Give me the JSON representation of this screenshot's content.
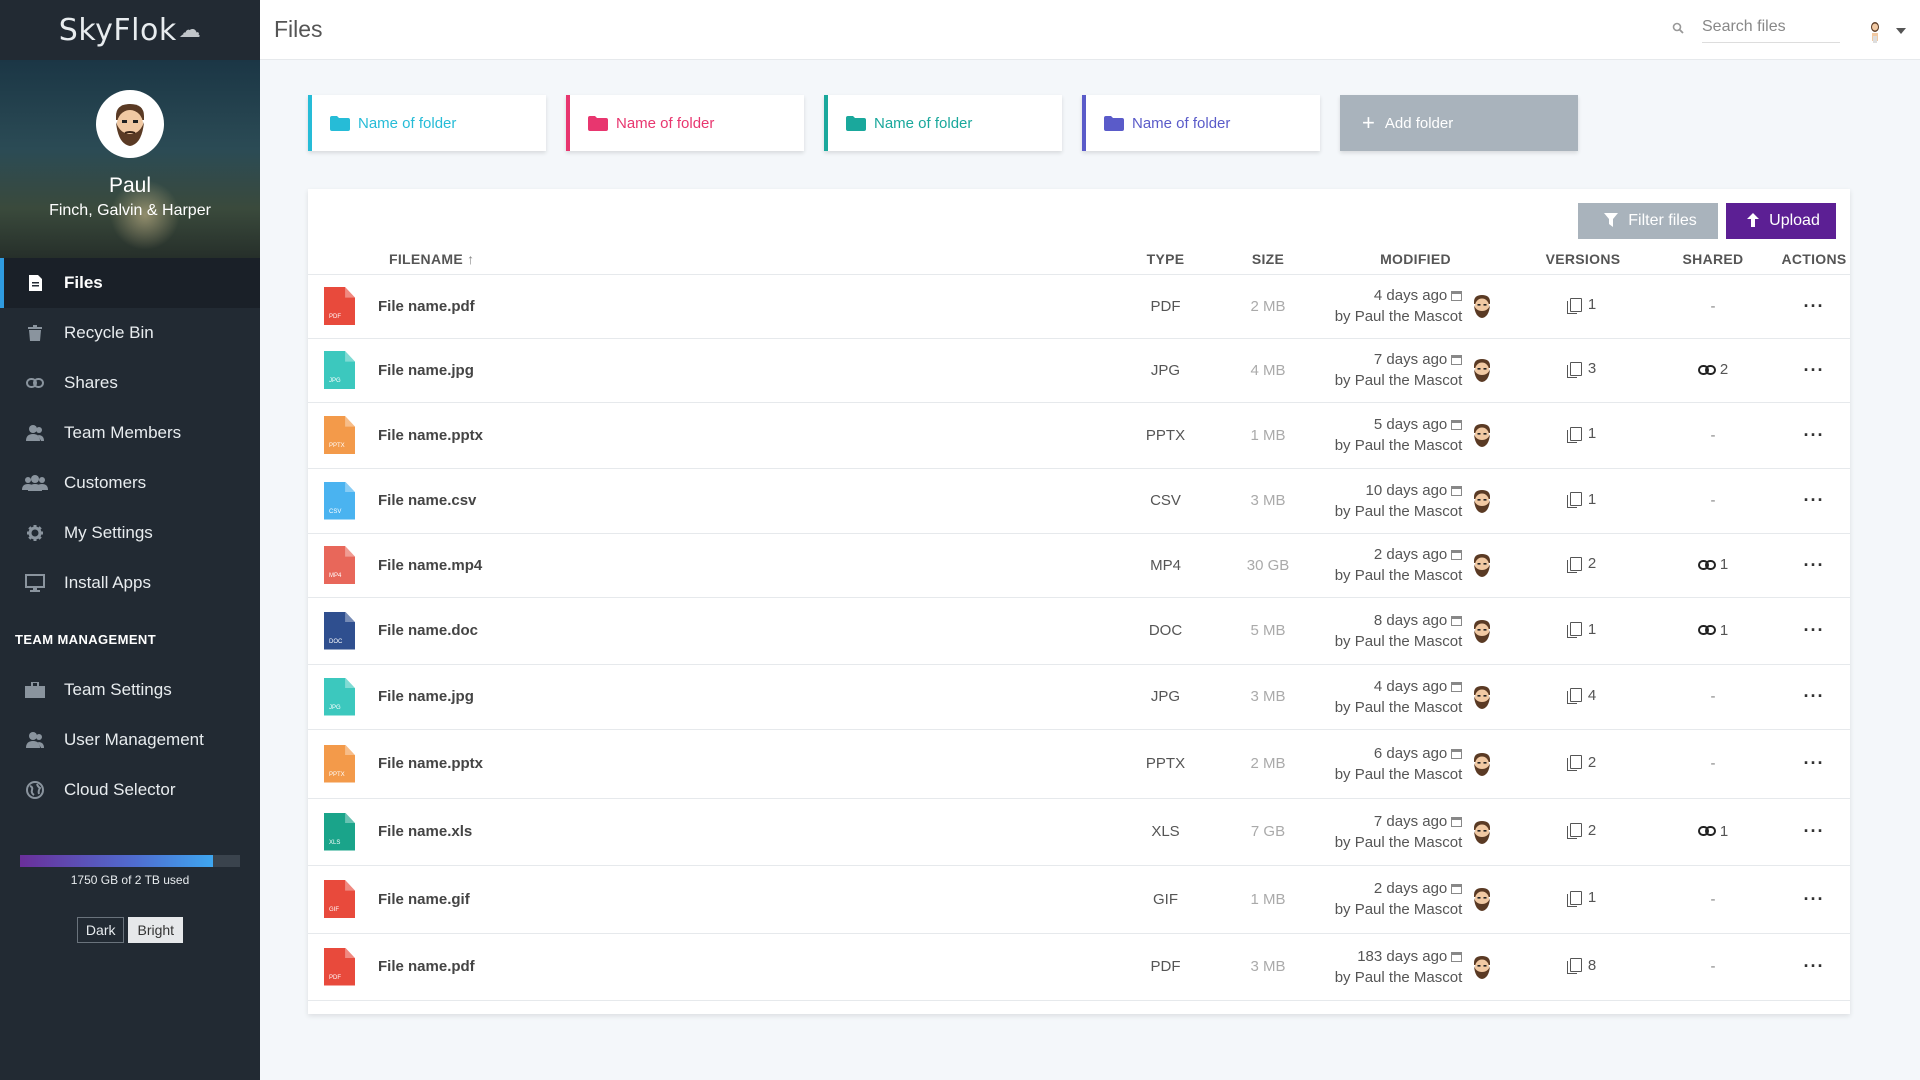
{
  "app": {
    "brand": "SkyFlok"
  },
  "profile": {
    "name": "Paul",
    "company": "Finch, Galvin & Harper"
  },
  "sidebar": {
    "items": [
      {
        "label": "Files",
        "icon": "file-icon",
        "active": true
      },
      {
        "label": "Recycle Bin",
        "icon": "trash-icon"
      },
      {
        "label": "Shares",
        "icon": "link-icon"
      },
      {
        "label": "Team Members",
        "icon": "users-icon"
      },
      {
        "label": "Customers",
        "icon": "group-icon"
      },
      {
        "label": "My Settings",
        "icon": "gear-icon"
      },
      {
        "label": "Install Apps",
        "icon": "monitor-icon"
      }
    ],
    "section_title": "TEAM MANAGEMENT",
    "team_items": [
      {
        "label": "Team Settings",
        "icon": "briefcase-icon"
      },
      {
        "label": "User Management",
        "icon": "users-icon"
      },
      {
        "label": "Cloud Selector",
        "icon": "globe-icon"
      }
    ],
    "storage": {
      "text": "1750 GB of 2 TB used",
      "used_fraction": 0.875
    },
    "theme": {
      "dark": "Dark",
      "bright": "Bright",
      "selected": "Bright"
    }
  },
  "header": {
    "title": "Files",
    "search_placeholder": "Search files"
  },
  "folders": [
    {
      "label": "Name of folder",
      "color": "#26bcd7"
    },
    {
      "label": "Name of folder",
      "color": "#e8366f"
    },
    {
      "label": "Name of folder",
      "color": "#1aa89c"
    },
    {
      "label": "Name of folder",
      "color": "#5a5bc9"
    }
  ],
  "add_folder_label": "Add folder",
  "toolbar": {
    "filter_label": "Filter files",
    "upload_label": "Upload"
  },
  "columns": {
    "filename": "FILENAME",
    "sort_indicator": "↑",
    "type": "TYPE",
    "size": "SIZE",
    "modified": "MODIFIED",
    "versions": "VERSIONS",
    "shared": "SHARED",
    "actions": "ACTIONS"
  },
  "files": [
    {
      "name": "File name.pdf",
      "type": "PDF",
      "ext": "PDF",
      "color": "#e84a3c",
      "size": "2 MB",
      "modified": "4 days ago",
      "by": "by Paul the Mascot",
      "versions": "1",
      "shared": "-"
    },
    {
      "name": "File name.jpg",
      "type": "JPG",
      "ext": "JPG",
      "color": "#3cc8be",
      "size": "4 MB",
      "modified": "7 days ago",
      "by": "by Paul the Mascot",
      "versions": "3",
      "shared": "2"
    },
    {
      "name": "File name.pptx",
      "type": "PPTX",
      "ext": "PPTX",
      "color": "#f39a4a",
      "size": "1 MB",
      "modified": "5 days ago",
      "by": "by Paul the Mascot",
      "versions": "1",
      "shared": "-"
    },
    {
      "name": "File name.csv",
      "type": "CSV",
      "ext": "CSV",
      "color": "#4ab3f0",
      "size": "3 MB",
      "modified": "10 days ago",
      "by": "by Paul the Mascot",
      "versions": "1",
      "shared": "-"
    },
    {
      "name": "File name.mp4",
      "type": "MP4",
      "ext": "MP4",
      "color": "#e8675a",
      "size": "30 GB",
      "modified": "2 days ago",
      "by": "by Paul the Mascot",
      "versions": "2",
      "shared": "1"
    },
    {
      "name": "File name.doc",
      "type": "DOC",
      "ext": "DOC",
      "color": "#2f4f8f",
      "size": "5 MB",
      "modified": "8 days ago",
      "by": "by Paul the Mascot",
      "versions": "1",
      "shared": "1"
    },
    {
      "name": "File name.jpg",
      "type": "JPG",
      "ext": "JPG",
      "color": "#3cc8be",
      "size": "3 MB",
      "modified": "4 days ago",
      "by": "by Paul the Mascot",
      "versions": "4",
      "shared": "-"
    },
    {
      "name": "File name.pptx",
      "type": "PPTX",
      "ext": "PPTX",
      "color": "#f39a4a",
      "size": "2 MB",
      "modified": "6 days ago",
      "by": "by Paul the Mascot",
      "versions": "2",
      "shared": "-"
    },
    {
      "name": "File name.xls",
      "type": "XLS",
      "ext": "XLS",
      "color": "#1aa48a",
      "size": "7 GB",
      "modified": "7 days ago",
      "by": "by Paul the Mascot",
      "versions": "2",
      "shared": "1"
    },
    {
      "name": "File name.gif",
      "type": "GIF",
      "ext": "GIF",
      "color": "#e84a3c",
      "size": "1 MB",
      "modified": "2 days ago",
      "by": "by Paul the Mascot",
      "versions": "1",
      "shared": "-"
    },
    {
      "name": "File name.pdf",
      "type": "PDF",
      "ext": "PDF",
      "color": "#e84a3c",
      "size": "3 MB",
      "modified": "183 days ago",
      "by": "by Paul the Mascot",
      "versions": "8",
      "shared": "-"
    }
  ],
  "actions_glyph": "···"
}
